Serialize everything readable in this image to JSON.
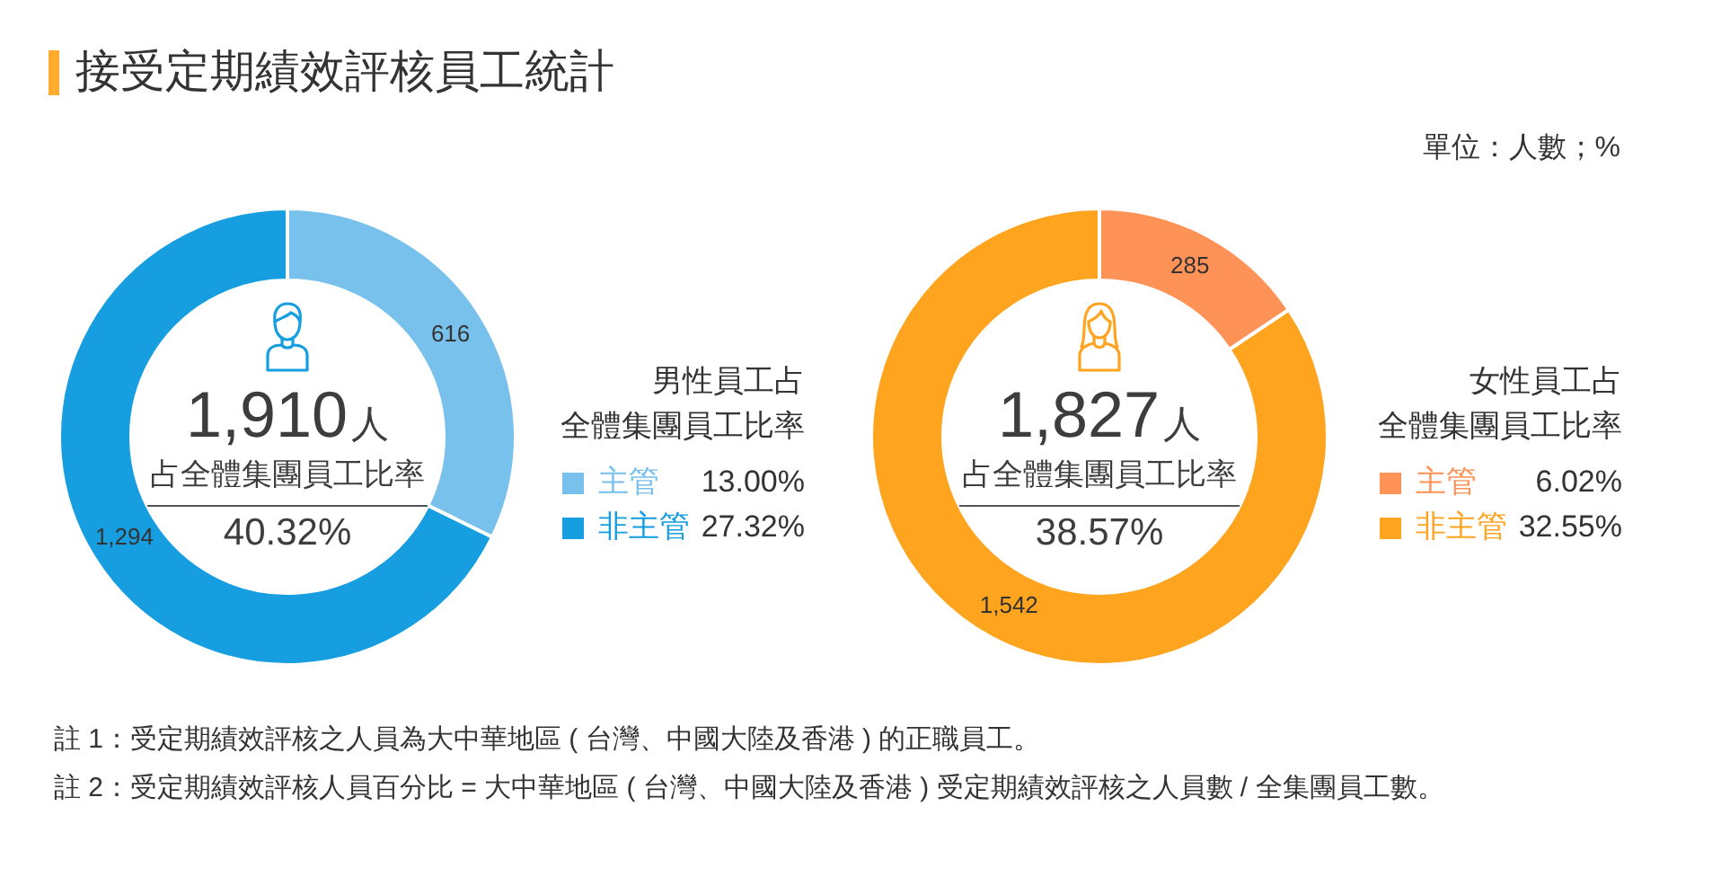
{
  "chart_data": [
    {
      "type": "donut",
      "title": "接受定期績效評核員工統計",
      "legend_title": "男性員工占全體集團員工比率",
      "categories": [
        "主管",
        "非主管"
      ],
      "values": [
        616,
        1294
      ],
      "value_labels": [
        "616",
        "1,294"
      ],
      "colors": [
        "#78c1ec",
        "#169ee0"
      ],
      "legend": "right",
      "annotations": [
        "1,910人",
        "占全體集團員工比率",
        "40.32%",
        "13.00%",
        "27.32%",
        "註 1：受定期績效評核之人員為大中華地區 ( 台灣、中國大陸及香港 ) 的正職員工。",
        "註 2：受定期績效評核人員百分比 = 大中華地區 ( 台灣、中國大陸及香港 ) 受定期績效評核之人員數 / 全集團員工數。"
      ]
    },
    {
      "type": "donut",
      "subtitle": "單位：人數；%",
      "legend_title": "女性員工占全體集團員工比率",
      "categories": [
        "主管",
        "非主管"
      ],
      "values": [
        285,
        1542
      ],
      "value_labels": [
        "285",
        "1,542"
      ],
      "colors": [
        "#ff9257",
        "#ffa41f"
      ],
      "legend": "right",
      "annotations": [
        "1,827人",
        "占全體集團員工比率",
        "38.57%",
        "6.02%",
        "32.55%"
      ]
    }
  ]
}
